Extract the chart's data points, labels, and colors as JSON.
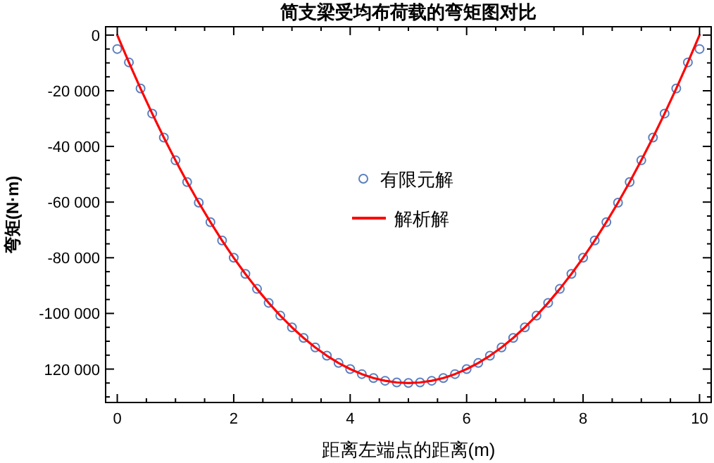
{
  "chart_data": {
    "type": "line",
    "title": "简支梁受均布荷载的弯矩图对比",
    "xlabel": "距离左端点的距离(m)",
    "ylabel": "弯矩(N·m)",
    "xlim": [
      -0.2,
      10.2
    ],
    "ylim": [
      -132000,
      3000
    ],
    "xticks": [
      0,
      {
        "value": 0.5,
        "label": null
      },
      {
        "value": 1,
        "label": null
      },
      {
        "value": 1.5,
        "label": null
      },
      2,
      {
        "value": 2.5,
        "label": null
      },
      {
        "value": 3,
        "label": null
      },
      {
        "value": 3.5,
        "label": null
      },
      4,
      {
        "value": 4.5,
        "label": null
      },
      {
        "value": 5,
        "label": null
      },
      {
        "value": 5.5,
        "label": null
      },
      6,
      {
        "value": 6.5,
        "label": null
      },
      {
        "value": 7,
        "label": null
      },
      {
        "value": 7.5,
        "label": null
      },
      8,
      {
        "value": 8.5,
        "label": null
      },
      {
        "value": 9,
        "label": null
      },
      {
        "value": 9.5,
        "label": null
      },
      10
    ],
    "yticks": [
      0,
      {
        "value": -5000,
        "label": null
      },
      {
        "value": -10000,
        "label": null
      },
      {
        "value": -15000,
        "label": null
      },
      {
        "value": -20000,
        "label": "-20 000"
      },
      {
        "value": -25000,
        "label": null
      },
      {
        "value": -30000,
        "label": null
      },
      {
        "value": -35000,
        "label": null
      },
      {
        "value": -40000,
        "label": "-40 000"
      },
      {
        "value": -45000,
        "label": null
      },
      {
        "value": -50000,
        "label": null
      },
      {
        "value": -55000,
        "label": null
      },
      {
        "value": -60000,
        "label": "-60 000"
      },
      {
        "value": -65000,
        "label": null
      },
      {
        "value": -70000,
        "label": null
      },
      {
        "value": -75000,
        "label": null
      },
      {
        "value": -80000,
        "label": "-80 000"
      },
      {
        "value": -85000,
        "label": null
      },
      {
        "value": -90000,
        "label": null
      },
      {
        "value": -95000,
        "label": null
      },
      {
        "value": -100000,
        "label": "-100 000"
      },
      {
        "value": -105000,
        "label": null
      },
      {
        "value": -110000,
        "label": null
      },
      {
        "value": -115000,
        "label": null
      },
      {
        "value": -120000,
        "label": "120 000"
      },
      {
        "value": -125000,
        "label": null
      },
      {
        "value": -130000,
        "label": null
      }
    ],
    "grid": false,
    "legend": "center",
    "x": [
      0,
      0.2,
      0.4,
      0.6,
      0.8,
      1,
      1.2,
      1.4,
      1.6,
      1.8,
      2,
      2.2,
      2.4,
      2.6,
      2.8,
      3,
      3.2,
      3.4,
      3.6,
      3.8,
      4,
      4.2,
      4.4,
      4.6,
      4.8,
      5,
      5.2,
      5.4,
      5.6,
      5.8,
      6,
      6.2,
      6.4,
      6.6,
      6.8,
      7,
      7.2,
      7.4,
      7.6,
      7.8,
      8,
      8.2,
      8.4,
      8.6,
      8.8,
      9,
      9.2,
      9.4,
      9.6,
      9.8,
      10
    ],
    "series": [
      {
        "name": "有限元解",
        "type": "scatter",
        "marker": "circle",
        "color": "#5b7fc0",
        "values": [
          -5000,
          -9800,
          -19200,
          -28200,
          -36800,
          -45000,
          -52800,
          -60200,
          -67200,
          -73800,
          -80000,
          -85800,
          -91200,
          -96200,
          -100800,
          -105000,
          -108800,
          -112200,
          -115200,
          -117800,
          -120000,
          -121800,
          -123200,
          -124200,
          -124800,
          -125000,
          -124800,
          -124200,
          -123200,
          -121800,
          -120000,
          -117800,
          -115200,
          -112200,
          -108800,
          -105000,
          -100800,
          -96200,
          -91200,
          -85800,
          -80000,
          -73800,
          -67200,
          -60200,
          -52800,
          -45000,
          -36800,
          -28200,
          -19200,
          -9800,
          -5000
        ]
      },
      {
        "name": "解析解",
        "line_style": "solid",
        "color": "#ff0000",
        "values": [
          0,
          -9800,
          -19200,
          -28200,
          -36800,
          -45000,
          -52800,
          -60200,
          -67200,
          -73800,
          -80000,
          -85800,
          -91200,
          -96200,
          -100800,
          -105000,
          -108800,
          -112200,
          -115200,
          -117800,
          -120000,
          -121800,
          -123200,
          -124200,
          -124800,
          -125000,
          -124800,
          -124200,
          -123200,
          -121800,
          -120000,
          -117800,
          -115200,
          -112200,
          -108800,
          -105000,
          -100800,
          -96200,
          -91200,
          -85800,
          -80000,
          -73800,
          -67200,
          -60200,
          -52800,
          -45000,
          -36800,
          -28200,
          -19200,
          -9800,
          0
        ]
      }
    ]
  }
}
